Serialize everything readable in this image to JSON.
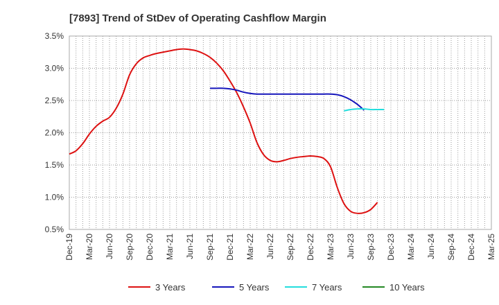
{
  "chart_data": {
    "type": "line",
    "title": "[7893]  Trend of StDev of Operating Cashflow Margin",
    "xlabel": "",
    "ylabel": "",
    "ylim": [
      0.5,
      3.5
    ],
    "y_ticks": [
      0.5,
      1.0,
      1.5,
      2.0,
      2.5,
      3.0,
      3.5
    ],
    "y_tick_labels": [
      "0.5%",
      "1.0%",
      "1.5%",
      "2.0%",
      "2.5%",
      "3.0%",
      "3.5%"
    ],
    "x_tick_labels": [
      "Dec-19",
      "Mar-20",
      "Jun-20",
      "Sep-20",
      "Dec-20",
      "Mar-21",
      "Jun-21",
      "Sep-21",
      "Dec-21",
      "Mar-22",
      "Jun-22",
      "Sep-22",
      "Dec-22",
      "Mar-23",
      "Jun-23",
      "Sep-23",
      "Dec-23",
      "Mar-24",
      "Jun-24",
      "Sep-24",
      "Dec-24",
      "Mar-25"
    ],
    "grid": true,
    "legend_position": "bottom",
    "series": [
      {
        "name": "3 Years",
        "color": "#dd1111",
        "start_index": 0,
        "values": [
          1.67,
          1.72,
          1.83,
          1.98,
          2.1,
          2.18,
          2.24,
          2.38,
          2.6,
          2.9,
          3.07,
          3.16,
          3.2,
          3.23,
          3.25,
          3.27,
          3.29,
          3.3,
          3.29,
          3.27,
          3.23,
          3.17,
          3.08,
          2.96,
          2.8,
          2.62,
          2.4,
          2.15,
          1.85,
          1.66,
          1.57,
          1.55,
          1.57,
          1.6,
          1.62,
          1.63,
          1.64,
          1.63,
          1.6,
          1.47,
          1.15,
          0.9,
          0.78,
          0.75,
          0.76,
          0.81,
          0.92
        ]
      },
      {
        "name": "5 Years",
        "color": "#1515bb",
        "start_index": 21,
        "values": [
          2.69,
          2.69,
          2.69,
          2.68,
          2.66,
          2.63,
          2.61,
          2.6,
          2.6,
          2.6,
          2.6,
          2.6,
          2.6,
          2.6,
          2.6,
          2.6,
          2.6,
          2.6,
          2.6,
          2.59,
          2.56,
          2.51,
          2.44,
          2.35
        ]
      },
      {
        "name": "7 Years",
        "color": "#22dddd",
        "start_index": 41,
        "values": [
          2.34,
          2.36,
          2.37,
          2.37,
          2.36,
          2.36,
          2.36
        ]
      },
      {
        "name": "10 Years",
        "color": "#228822",
        "start_index": 0,
        "values": []
      }
    ]
  }
}
